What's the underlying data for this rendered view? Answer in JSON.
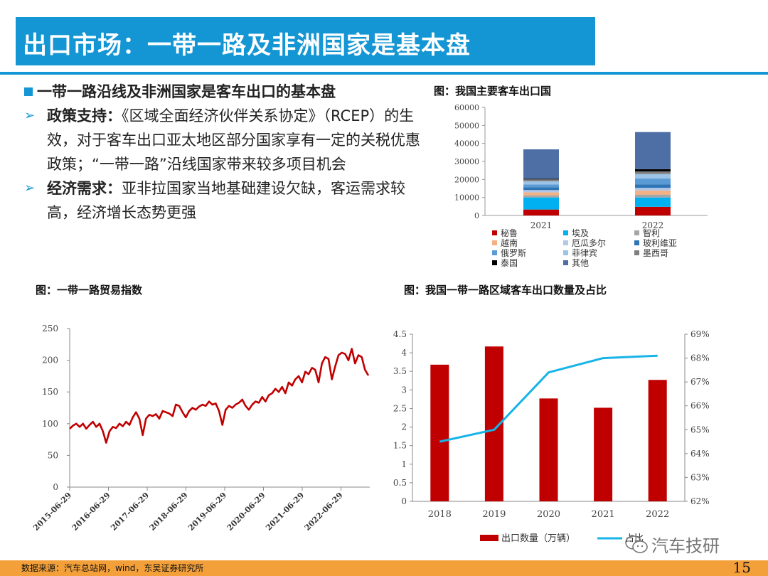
{
  "title": "出口市场：一带一路及非洲国家是基本盘",
  "bullets": {
    "heading": "一带一路沿线及非洲国家是客车出口的基本盘",
    "points": [
      {
        "label": "政策支持：",
        "text": "《区域全面经济伙伴关系协定》（RCEP）的生效，对于客车出口亚太地区部分国家享有一定的关税优惠政策；“一带一路”沿线国家带来较多项目机会"
      },
      {
        "label": "经济需求：",
        "text": "亚非拉国家当地基础建设欠缺，客运需求较高，经济增长态势更强"
      }
    ]
  },
  "figures": {
    "fig1_title": "图：我国主要客车出口国",
    "fig2_title": "图：一带一路贸易指数",
    "fig3_title": "图：我国一带一路区域客车出口数量及占比"
  },
  "chart_data": [
    {
      "type": "bar",
      "stacked": true,
      "title": "图：我国主要客车出口国",
      "categories": [
        "2021",
        "2022"
      ],
      "ylim": [
        0,
        60000
      ],
      "yticks": [
        "0",
        "10000",
        "20000",
        "30000",
        "40000",
        "50000",
        "60000"
      ],
      "legend_position": "bottom",
      "series": [
        {
          "name": "秘鲁",
          "color": "#c00000",
          "values": [
            3300,
            4800
          ]
        },
        {
          "name": "埃及",
          "color": "#00b0f0",
          "values": [
            6700,
            5200
          ]
        },
        {
          "name": "智利",
          "color": "#a6a6a6",
          "values": [
            1200,
            1600
          ]
        },
        {
          "name": "越南",
          "color": "#f4b183",
          "values": [
            1600,
            2200
          ]
        },
        {
          "name": "厄瓜多尔",
          "color": "#b4c7e7",
          "values": [
            1300,
            1500
          ]
        },
        {
          "name": "玻利维亚",
          "color": "#2e75b6",
          "values": [
            1600,
            2000
          ]
        },
        {
          "name": "俄罗斯",
          "color": "#5b9bd5",
          "values": [
            1500,
            3200
          ]
        },
        {
          "name": "菲律宾",
          "color": "#9dc3e6",
          "values": [
            1800,
            2500
          ]
        },
        {
          "name": "墨西哥",
          "color": "#7f7f7f",
          "values": [
            1000,
            1400
          ]
        },
        {
          "name": "泰国",
          "color": "#000000",
          "values": [
            400,
            1300
          ]
        },
        {
          "name": "其他",
          "color": "#4e6fa5",
          "values": [
            16300,
            20600
          ]
        }
      ]
    },
    {
      "type": "line",
      "title": "图：一带一路贸易指数",
      "color": "#c00000",
      "ylim": [
        0,
        250
      ],
      "yticks": [
        "0",
        "50",
        "100",
        "150",
        "200",
        "250"
      ],
      "xticks": [
        "2015-06-29",
        "2016-06-29",
        "2017-06-29",
        "2018-06-29",
        "2019-06-29",
        "2020-06-29",
        "2021-06-29",
        "2022-06-29"
      ],
      "x_start": "2015-06-29",
      "x_end": "2023-05",
      "values": [
        92,
        97,
        100,
        95,
        100,
        92,
        98,
        103,
        95,
        100,
        88,
        70,
        88,
        95,
        93,
        100,
        96,
        103,
        98,
        110,
        118,
        108,
        82,
        108,
        114,
        112,
        115,
        108,
        120,
        118,
        116,
        112,
        130,
        128,
        118,
        110,
        120,
        125,
        122,
        127,
        130,
        128,
        135,
        130,
        132,
        120,
        98,
        122,
        128,
        125,
        130,
        133,
        138,
        128,
        122,
        130,
        135,
        133,
        142,
        135,
        145,
        148,
        155,
        150,
        158,
        148,
        165,
        160,
        170,
        175,
        165,
        182,
        178,
        188,
        185,
        165,
        195,
        205,
        202,
        170,
        190,
        208,
        212,
        210,
        200,
        218,
        195,
        208,
        205,
        185,
        176
      ]
    },
    {
      "type": "bar",
      "title": "图：我国一带一路区域客车出口数量及占比",
      "categories": [
        "2018",
        "2019",
        "2020",
        "2021",
        "2022"
      ],
      "ylim": [
        0,
        4.5
      ],
      "yticks": [
        "0",
        "0.5",
        "1",
        "1.5",
        "2",
        "2.5",
        "3",
        "3.5",
        "4",
        "4.5"
      ],
      "y2lim": [
        62,
        69
      ],
      "y2ticks": [
        "62%",
        "63%",
        "64%",
        "65%",
        "66%",
        "67%",
        "68%",
        "69%"
      ],
      "legend_position": "bottom",
      "series": [
        {
          "name": "出口数量（万辆）",
          "kind": "bar",
          "axis": "left",
          "color": "#c00000",
          "values": [
            3.68,
            4.17,
            2.77,
            2.52,
            3.27
          ]
        },
        {
          "name": "占比",
          "kind": "line",
          "axis": "right",
          "color": "#17b4e8",
          "values": [
            64.5,
            65.0,
            67.4,
            68.0,
            68.1
          ]
        }
      ]
    }
  ],
  "footer": {
    "source": "数据来源：汽车总站网，wind，东吴证券研究所",
    "page": "15"
  },
  "watermark": {
    "text": "汽车技研",
    "icon": "wechat-icon"
  }
}
